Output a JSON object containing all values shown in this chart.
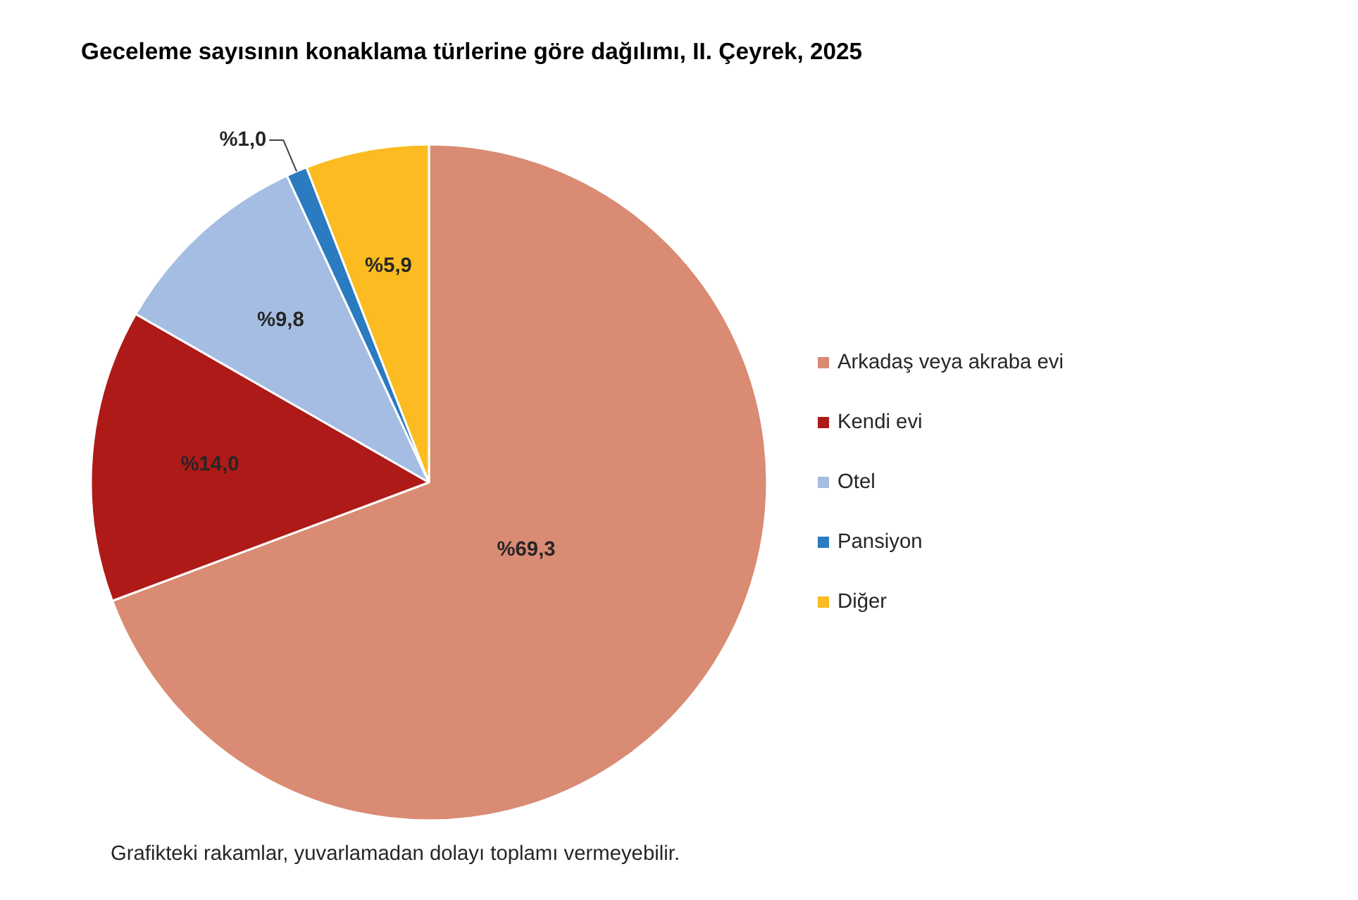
{
  "chart_data": {
    "type": "pie",
    "title": "Geceleme sayısının konaklama türlerine göre dağılımı, II. Çeyrek, 2025",
    "categories": [
      "Arkadaş veya akraba evi",
      "Kendi evi",
      "Otel",
      "Pansiyon",
      "Diğer"
    ],
    "values": [
      69.3,
      14.0,
      9.8,
      1.0,
      5.9
    ],
    "colors": [
      "#d98b73",
      "#ae1a17",
      "#a5bde3",
      "#2a7bc0",
      "#fbbb21"
    ],
    "value_labels": [
      "%69,3",
      "%14,0",
      "%9,8",
      "%1,0",
      "%5,9"
    ],
    "legend": "right",
    "annotations": [
      "Grafikteki rakamlar, yuvarlamadan dolayı toplamı vermeyebilir."
    ]
  }
}
